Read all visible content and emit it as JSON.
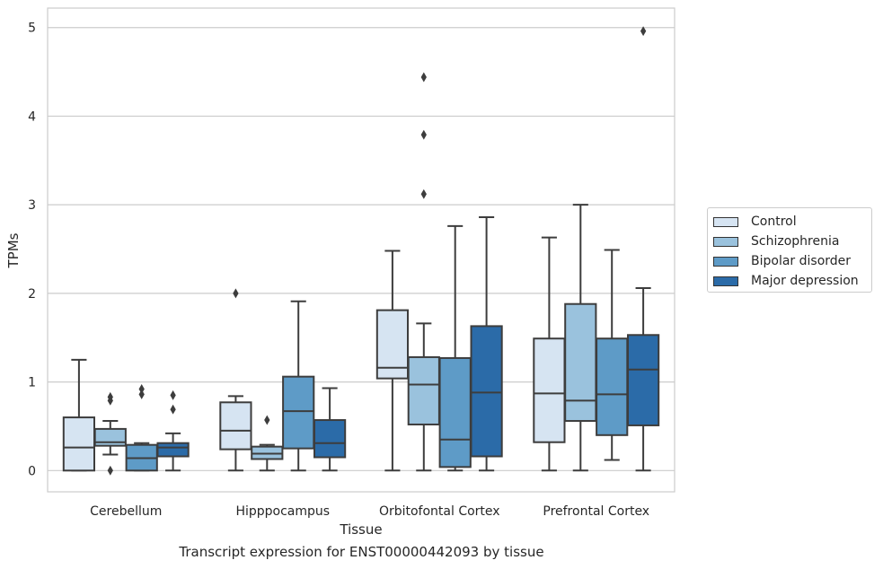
{
  "caption": "Transcript expression for ENST00000442093 by tissue",
  "chart_data": {
    "type": "box",
    "xlabel": "Tissue",
    "ylabel": "TPMs",
    "ylim": [
      -0.24,
      5.22
    ],
    "yticks": [
      0,
      1,
      2,
      3,
      4,
      5
    ],
    "grid": "horizontal",
    "legend_placement": "right",
    "categories": [
      "Cerebellum",
      "Hipppocampus",
      "Orbitofontal Cortex",
      "Prefrontal Cortex"
    ],
    "series": [
      {
        "name": "Control",
        "color": "#d6e4f2",
        "boxes": [
          {
            "whislo": 0.0,
            "q1": 0.0,
            "med": 0.26,
            "q3": 0.6,
            "whishi": 1.25,
            "fliers": []
          },
          {
            "whislo": 0.0,
            "q1": 0.24,
            "med": 0.45,
            "q3": 0.77,
            "whishi": 0.84,
            "fliers": [
              2.0
            ]
          },
          {
            "whislo": 0.0,
            "q1": 1.04,
            "med": 1.16,
            "q3": 1.81,
            "whishi": 2.48,
            "fliers": []
          },
          {
            "whislo": 0.0,
            "q1": 0.32,
            "med": 0.87,
            "q3": 1.49,
            "whishi": 2.63,
            "fliers": []
          }
        ]
      },
      {
        "name": "Schizophrenia",
        "color": "#9ac2dd",
        "boxes": [
          {
            "whislo": 0.18,
            "q1": 0.28,
            "med": 0.32,
            "q3": 0.47,
            "whishi": 0.56,
            "fliers": [
              0.0,
              0.79,
              0.83
            ]
          },
          {
            "whislo": 0.0,
            "q1": 0.13,
            "med": 0.19,
            "q3": 0.27,
            "whishi": 0.29,
            "fliers": [
              0.57
            ]
          },
          {
            "whislo": 0.0,
            "q1": 0.52,
            "med": 0.97,
            "q3": 1.28,
            "whishi": 1.66,
            "fliers": [
              3.12,
              3.79,
              4.44
            ]
          },
          {
            "whislo": 0.0,
            "q1": 0.56,
            "med": 0.79,
            "q3": 1.88,
            "whishi": 3.0,
            "fliers": []
          }
        ]
      },
      {
        "name": "Bipolar disorder",
        "color": "#5e9bc7",
        "boxes": [
          {
            "whislo": 0.0,
            "q1": 0.0,
            "med": 0.14,
            "q3": 0.29,
            "whishi": 0.31,
            "fliers": [
              0.86,
              0.92
            ]
          },
          {
            "whislo": 0.0,
            "q1": 0.25,
            "med": 0.67,
            "q3": 1.06,
            "whishi": 1.91,
            "fliers": []
          },
          {
            "whislo": 0.0,
            "q1": 0.04,
            "med": 0.35,
            "q3": 1.27,
            "whishi": 2.76,
            "fliers": []
          },
          {
            "whislo": 0.12,
            "q1": 0.4,
            "med": 0.86,
            "q3": 1.49,
            "whishi": 2.49,
            "fliers": []
          }
        ]
      },
      {
        "name": "Major depression",
        "color": "#2b6ba8",
        "boxes": [
          {
            "whislo": 0.0,
            "q1": 0.16,
            "med": 0.26,
            "q3": 0.31,
            "whishi": 0.42,
            "fliers": [
              0.69,
              0.85
            ]
          },
          {
            "whislo": 0.0,
            "q1": 0.15,
            "med": 0.31,
            "q3": 0.57,
            "whishi": 0.93,
            "fliers": []
          },
          {
            "whislo": 0.0,
            "q1": 0.16,
            "med": 0.88,
            "q3": 1.63,
            "whishi": 2.86,
            "fliers": []
          },
          {
            "whislo": 0.0,
            "q1": 0.51,
            "med": 1.14,
            "q3": 1.53,
            "whishi": 2.06,
            "fliers": [
              4.96
            ]
          }
        ]
      }
    ]
  }
}
